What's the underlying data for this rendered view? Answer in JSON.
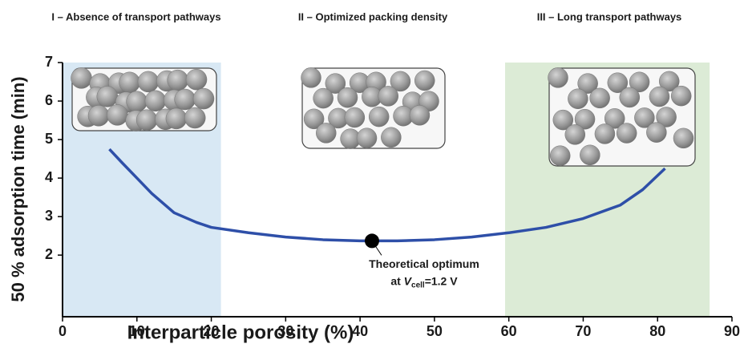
{
  "chart_data": {
    "type": "line",
    "x_label": "Interparticle porosity (%)",
    "y_label": "50 % adsorption time (min)",
    "xlim": [
      0,
      90
    ],
    "xticks": [
      0,
      10,
      20,
      30,
      40,
      50,
      60,
      70,
      80,
      90
    ],
    "ylim": [
      0.4,
      7
    ],
    "yticks": [
      2,
      3,
      4,
      5,
      6,
      7
    ],
    "color": "#2e4fa8",
    "x": [
      6.3,
      8,
      10,
      12,
      15,
      18,
      20,
      25,
      30,
      35,
      40,
      45,
      50,
      55,
      60,
      65,
      70,
      75,
      78,
      81
    ],
    "values": [
      4.75,
      4.4,
      4.0,
      3.6,
      3.1,
      2.85,
      2.72,
      2.58,
      2.47,
      2.4,
      2.37,
      2.37,
      2.4,
      2.47,
      2.58,
      2.72,
      2.95,
      3.3,
      3.7,
      4.25
    ],
    "regions": [
      {
        "label": "I – Absence of transport pathways",
        "xlim": [
          0,
          21.3
        ],
        "color": "#d8e8f4"
      },
      {
        "label": "II – Optimized packing density",
        "xlim": null,
        "color": null
      },
      {
        "label": "III – Long transport pathways",
        "xlim": [
          59.5,
          87
        ],
        "color": "#dcebd6"
      }
    ],
    "optimum": {
      "x": 41.6,
      "y": 2.37,
      "line1": "Theoretical optimum",
      "line2_pre": "at ",
      "var": "V",
      "sub": "cell",
      "line2_post": "=1.2 V"
    }
  }
}
